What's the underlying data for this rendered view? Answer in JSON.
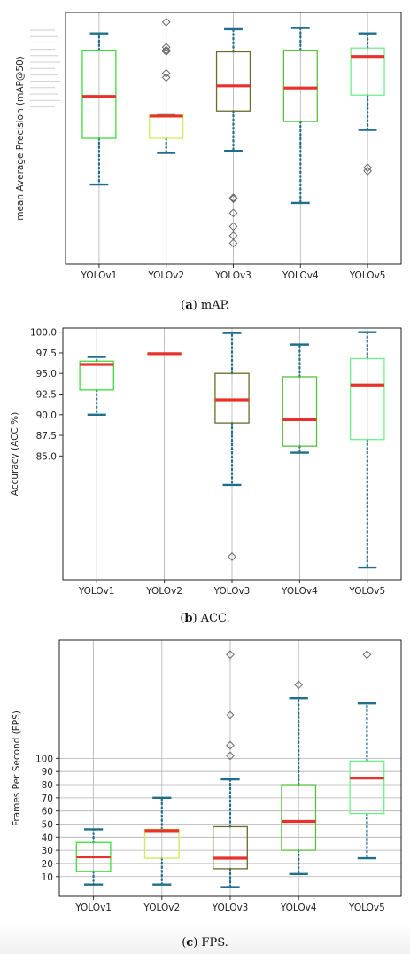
{
  "chart_data": [
    {
      "type": "box",
      "ylabel": "mean Average Precision (mAP@50)",
      "yticks": [],
      "grid": "vertical lines at each category",
      "categories": [
        "YOLOv1",
        "YOLOv2",
        "YOLOv3",
        "YOLOv4",
        "YOLOv5"
      ],
      "boxes": [
        {
          "name": "YOLOv1",
          "whisker_low": 49,
          "q1": 60,
          "median": 70,
          "q3": 81,
          "whisker_high": 85,
          "outliers": [],
          "box_color": "#3ddc3d"
        },
        {
          "name": "YOLOv2",
          "whisker_low": 56.5,
          "q1": 60,
          "median": 65.3,
          "q3": 65.5,
          "whisker_high": 65.5,
          "outliers": [
            74.5,
            75.5,
            80.7,
            81,
            81.7,
            87.7,
            97
          ],
          "box_color": "#c8ee5a"
        },
        {
          "name": "YOLOv3",
          "whisker_low": 57,
          "q1": 66.5,
          "median": 72.5,
          "q3": 80.6,
          "whisker_high": 86,
          "outliers": [
            45.8,
            45.8,
            45.6,
            42.2,
            39,
            36.8,
            35
          ],
          "box_color": "#6b6b2a"
        },
        {
          "name": "YOLOv4",
          "whisker_low": 44.6,
          "q1": 64,
          "median": 72,
          "q3": 81,
          "whisker_high": 86.3,
          "outliers": [],
          "box_color": "#55c43b"
        },
        {
          "name": "YOLOv5",
          "whisker_low": 62,
          "q1": 70.3,
          "median": 79.5,
          "q3": 81.5,
          "whisker_high": 85,
          "outliers": [
            52.2,
            53
          ],
          "box_color": "#6cf08a"
        }
      ]
    },
    {
      "type": "box",
      "ylabel": "Accuracy (ACC %)",
      "ylim": [
        70,
        100.5
      ],
      "yticks": [
        "85.0",
        "87.5",
        "90.0",
        "92.5",
        "95.0",
        "97.5",
        "100.0"
      ],
      "categories": [
        "YOLOv1",
        "YOLOv2",
        "YOLOv3",
        "YOLOv4",
        "YOLOv5"
      ],
      "boxes": [
        {
          "name": "YOLOv1",
          "whisker_low": 90,
          "q1": 93,
          "median": 96.1,
          "q3": 96.5,
          "whisker_high": 97,
          "outliers": [],
          "box_color": "#3ddc3d"
        },
        {
          "name": "YOLOv2",
          "whisker_low": 97.4,
          "q1": 97.4,
          "median": 97.4,
          "q3": 97.4,
          "whisker_high": 97.4,
          "outliers": [],
          "box_color": "#c8ee5a"
        },
        {
          "name": "YOLOv3",
          "whisker_low": 81.5,
          "q1": 89,
          "median": 91.8,
          "q3": 95,
          "whisker_high": 99.9,
          "outliers": [
            72.8
          ],
          "box_color": "#6b6b2a"
        },
        {
          "name": "YOLOv4",
          "whisker_low": 85.4,
          "q1": 86.2,
          "median": 89.4,
          "q3": 94.6,
          "whisker_high": 98.5,
          "outliers": [],
          "box_color": "#55c43b"
        },
        {
          "name": "YOLOv5",
          "whisker_low": 71.5,
          "q1": 87,
          "median": 93.6,
          "q3": 96.8,
          "whisker_high": 100,
          "outliers": [],
          "box_color": "#6cf08a"
        }
      ]
    },
    {
      "type": "box",
      "ylabel": "Frames Per Second (FPS)",
      "ylim": [
        0,
        200
      ],
      "yticks": [
        "10",
        "20",
        "30",
        "40",
        "50",
        "60",
        "70",
        "80",
        "90",
        "100"
      ],
      "grid": "both",
      "categories": [
        "YOLOv1",
        "YOLOv2",
        "YOLOv3",
        "YOLOv4",
        "YOLOv5"
      ],
      "boxes": [
        {
          "name": "YOLOv1",
          "whisker_low": 4,
          "q1": 14,
          "median": 25,
          "q3": 36,
          "whisker_high": 46,
          "outliers": [],
          "box_color": "#3ddc3d"
        },
        {
          "name": "YOLOv2",
          "whisker_low": 4,
          "q1": 24,
          "median": 45,
          "q3": 46,
          "whisker_high": 70,
          "outliers": [],
          "box_color": "#c8ee5a"
        },
        {
          "name": "YOLOv3",
          "whisker_low": 2,
          "q1": 16,
          "median": 24,
          "q3": 48,
          "whisker_high": 84,
          "outliers": [
            102,
            110,
            133,
            179
          ],
          "box_color": "#6b6b2a"
        },
        {
          "name": "YOLOv4",
          "whisker_low": 12,
          "q1": 30,
          "median": 52,
          "q3": 80,
          "whisker_high": 146,
          "outliers": [
            156
          ],
          "box_color": "#55c43b"
        },
        {
          "name": "YOLOv5",
          "whisker_low": 24,
          "q1": 58,
          "median": 85,
          "q3": 98,
          "whisker_high": 142,
          "outliers": [
            179
          ],
          "box_color": "#6cf08a"
        }
      ]
    }
  ],
  "captions": [
    {
      "letter": "a",
      "text": " mAP."
    },
    {
      "letter": "b",
      "text": " ACC."
    },
    {
      "letter": "c",
      "text": " FPS."
    }
  ],
  "colors": {
    "median": "#e8312a",
    "whisker": "#1f6f8b",
    "grid": "#b0b0b0",
    "outlier": "#6a6a6a"
  }
}
